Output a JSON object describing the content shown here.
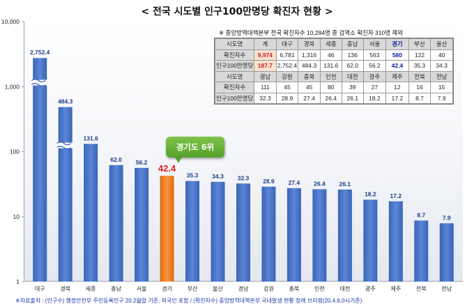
{
  "title": "< 전국 시도별 인구100만명당 확진자 현황 >",
  "callout": "경기도 6위",
  "source_note": "※자료출처 : (인구수) 행정안전부 주민등록인구 20.2월말 기준, 외국인 포함 / (확진자수) 중앙방역대책본부 국내발생 현황 정례 브리핑(20.4.6.0시기준)",
  "table": {
    "caption": "※ 중앙방역대책본부 전국 확진자수 10,284명 중 검역소 확진자 310명 제외",
    "rows": [
      [
        "시도명",
        "계",
        "대구",
        "경북",
        "세종",
        "충남",
        "서울",
        "경기",
        "부산",
        "울산"
      ],
      [
        "확진자수",
        "9,974",
        "6,781",
        "1,316",
        "46",
        "136",
        "563",
        "580",
        "122",
        "40"
      ],
      [
        "인구100만명당",
        "187.7",
        "2,752.4",
        "484.3",
        "131.6",
        "62.0",
        "56.2",
        "42.4",
        "35.3",
        "34.3"
      ],
      [
        "시도명",
        "경남",
        "강원",
        "충북",
        "인천",
        "대전",
        "광주",
        "제주",
        "전북",
        "전남"
      ],
      [
        "확진자수",
        "111",
        "45",
        "45",
        "80",
        "39",
        "27",
        "12",
        "16",
        "15"
      ],
      [
        "인구100만명당",
        "32.3",
        "28.9",
        "27.4",
        "26.4",
        "26.1",
        "18.2",
        "17.2",
        "8.7",
        "7.9"
      ]
    ]
  },
  "colors": {
    "bar": "#4472c4",
    "highlight_bar": "#f07b1e",
    "highlight_label": "#e01b1b",
    "value_label": "#1f3a8a",
    "callout": "#5aa82e",
    "source": "#1a33a8"
  },
  "chart_data": {
    "type": "bar",
    "title": "< 전국 시도별 인구100만명당 확진자 현황 >",
    "xlabel": "",
    "ylabel": "",
    "y_scale": "log",
    "ylim": [
      1,
      10000
    ],
    "y_ticks": [
      "1",
      "10",
      "100",
      "1,000",
      "10,000"
    ],
    "grid": false,
    "highlight_category": "경기",
    "categories": [
      "대구",
      "경북",
      "세종",
      "충남",
      "서울",
      "경기",
      "부산",
      "울산",
      "경남",
      "강원",
      "충북",
      "인천",
      "대전",
      "광주",
      "제주",
      "전북",
      "전남"
    ],
    "values": [
      2752.4,
      484.3,
      131.6,
      62.0,
      56.2,
      42.4,
      35.3,
      34.3,
      32.3,
      28.9,
      27.4,
      26.4,
      26.1,
      18.2,
      17.2,
      8.7,
      7.9
    ],
    "value_labels": [
      "2,752.4",
      "484.3",
      "131.6",
      "62.0",
      "56.2",
      "42.4",
      "35.3",
      "34.3",
      "32.3",
      "28.9",
      "27.4",
      "26.4",
      "26.1",
      "18.2",
      "17.2",
      "8.7",
      "7.9"
    ],
    "axis_break_categories": [
      "대구",
      "경북"
    ]
  }
}
